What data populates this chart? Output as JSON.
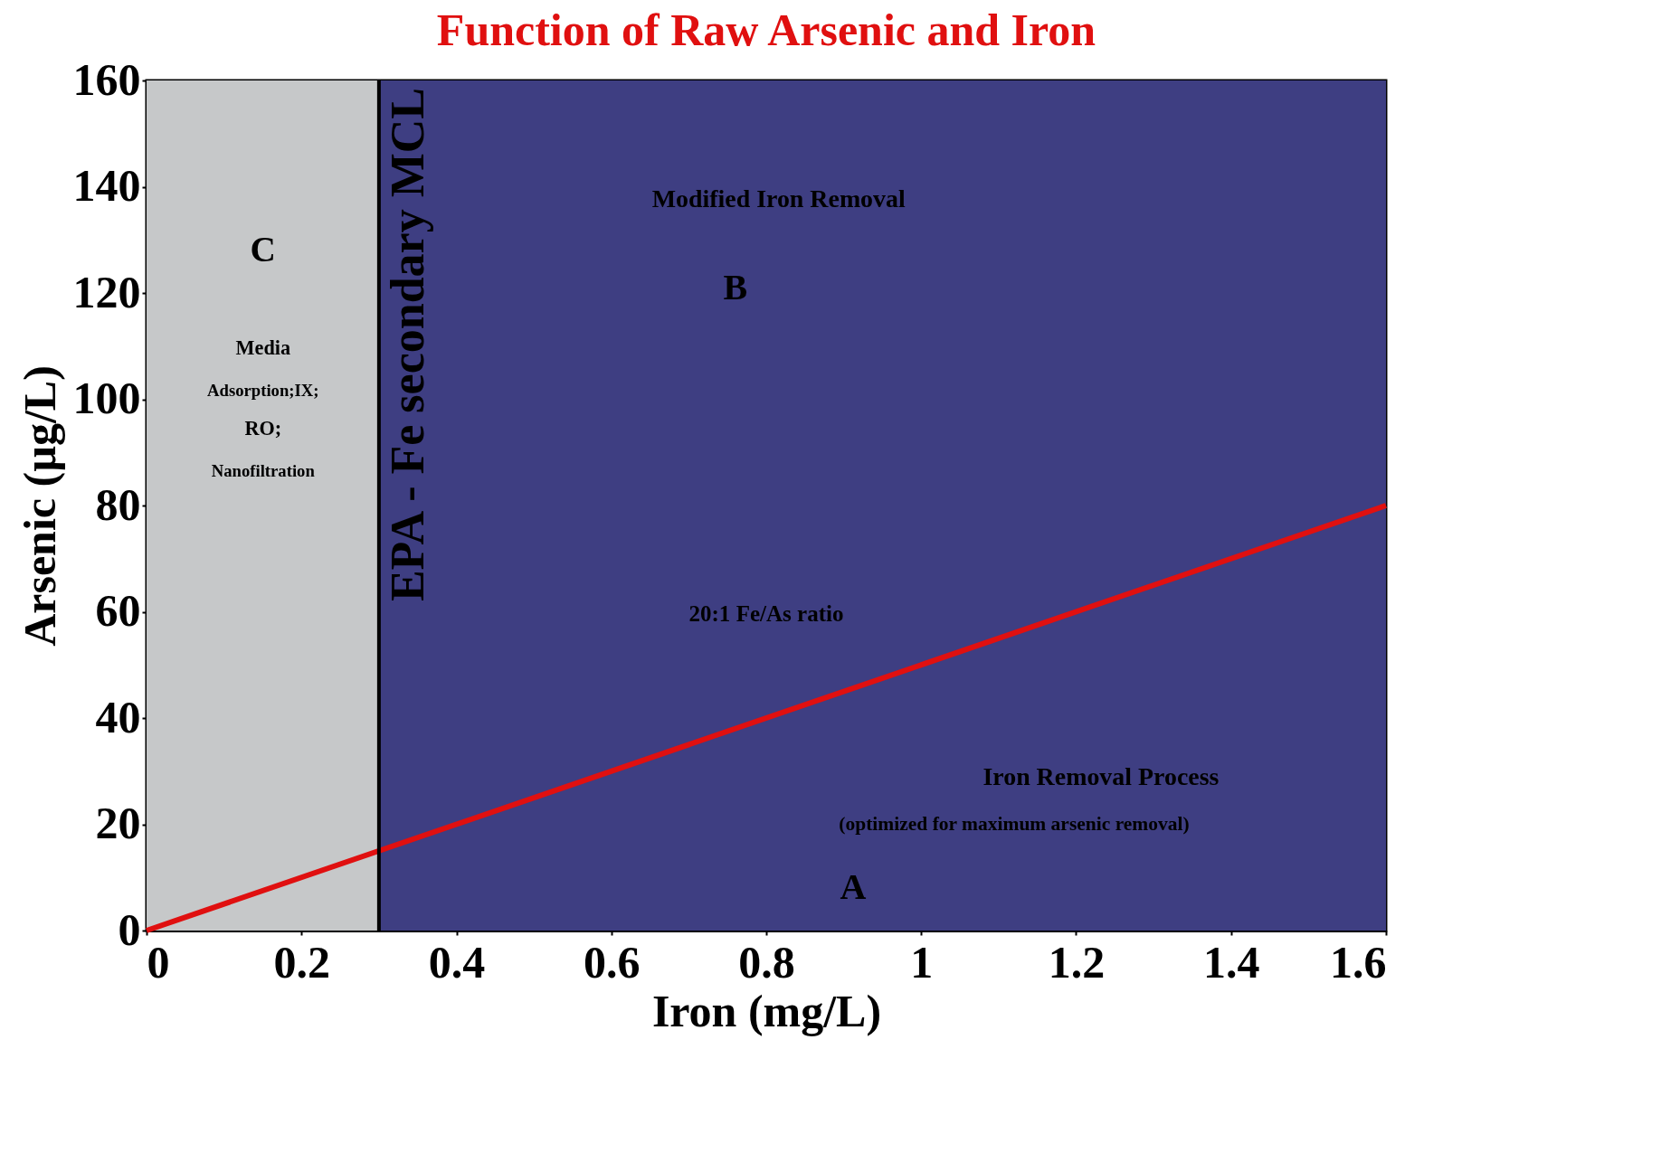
{
  "chart_data": {
    "type": "line",
    "title": "Function of Raw Arsenic and Iron",
    "xlabel": "Iron (mg/L)",
    "ylabel": "Arsenic (µg/L)",
    "x": [
      0,
      1.6
    ],
    "series": [
      {
        "color": "#e01010",
        "values": [
          0,
          80
        ]
      }
    ],
    "xlim": [
      0,
      1.6
    ],
    "xticks": [
      0,
      0.2,
      0.4,
      0.6,
      0.8,
      1,
      1.2,
      1.4,
      1.6
    ],
    "ylim": [
      0,
      160
    ],
    "yticks": [
      0,
      20,
      40,
      60,
      80,
      100,
      120,
      140,
      160
    ],
    "marker": "none",
    "line_style": "solid",
    "bands": [
      {
        "axis": "x",
        "from": 0,
        "to": 0.3,
        "color": "#c6c8c9"
      },
      {
        "axis": "x",
        "from": 0.3,
        "to": 1.6,
        "color": "#3e3e82"
      }
    ],
    "ref_lines": [
      {
        "axis": "x",
        "value": 0.3,
        "label": "EPA - Fe secondary MCL",
        "color": "#000000"
      }
    ],
    "annotations": [
      "C",
      "Media",
      "Adsorption;IX;",
      "RO;",
      "Nanofiltration",
      "Modified Iron Removal",
      "B",
      "20:1 Fe/As ratio",
      "Iron Removal Process",
      "(optimized for maximum arsenic removal)",
      "A"
    ]
  }
}
